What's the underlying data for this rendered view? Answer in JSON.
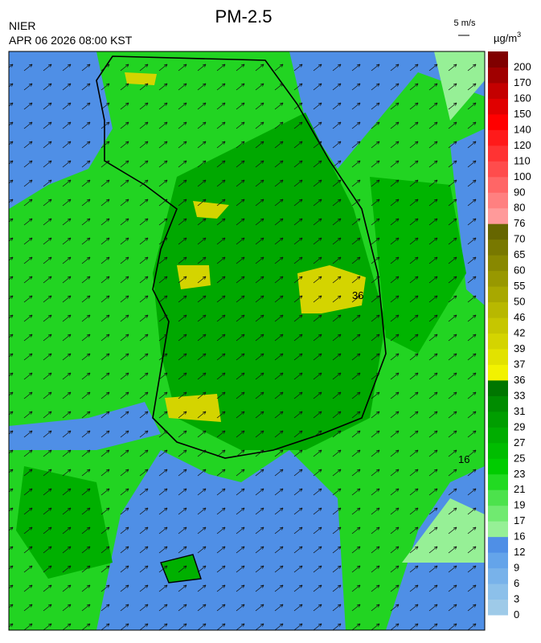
{
  "header": {
    "title": "PM-2.5",
    "agency": "NIER",
    "datetime": "APR 06 2026 08:00 KST",
    "wind_scale": "5 m/s",
    "unit": {
      "base": "µg/m",
      "superscript": "3"
    }
  },
  "map": {
    "contour_labels": [
      "36",
      "16"
    ]
  },
  "legend": [
    {
      "label": "0",
      "color": "#9ecae8"
    },
    {
      "label": "3",
      "color": "#8cc0ea"
    },
    {
      "label": "6",
      "color": "#78b2ea"
    },
    {
      "label": "9",
      "color": "#64a4ea"
    },
    {
      "label": "12",
      "color": "#4f8fe6"
    },
    {
      "label": "16",
      "color": "#96f096"
    },
    {
      "label": "17",
      "color": "#70ea70"
    },
    {
      "label": "19",
      "color": "#4ce24c"
    },
    {
      "label": "21",
      "color": "#22da22"
    },
    {
      "label": "23",
      "color": "#00cc00"
    },
    {
      "label": "25",
      "color": "#00bd00"
    },
    {
      "label": "27",
      "color": "#00ad00"
    },
    {
      "label": "29",
      "color": "#009e00"
    },
    {
      "label": "31",
      "color": "#008c00"
    },
    {
      "label": "33",
      "color": "#007600"
    },
    {
      "label": "36",
      "color": "#f2f200"
    },
    {
      "label": "37",
      "color": "#e2e200"
    },
    {
      "label": "39",
      "color": "#d4d400"
    },
    {
      "label": "42",
      "color": "#c6c600"
    },
    {
      "label": "46",
      "color": "#b8b800"
    },
    {
      "label": "50",
      "color": "#a8a800"
    },
    {
      "label": "55",
      "color": "#989800"
    },
    {
      "label": "60",
      "color": "#888800"
    },
    {
      "label": "65",
      "color": "#787800"
    },
    {
      "label": "70",
      "color": "#666600"
    },
    {
      "label": "76",
      "color": "#ff9a9a"
    },
    {
      "label": "80",
      "color": "#ff8080"
    },
    {
      "label": "90",
      "color": "#ff6666"
    },
    {
      "label": "100",
      "color": "#ff4c4c"
    },
    {
      "label": "110",
      "color": "#ff3333"
    },
    {
      "label": "120",
      "color": "#ff1a1a"
    },
    {
      "label": "140",
      "color": "#ff0000"
    },
    {
      "label": "150",
      "color": "#e00000"
    },
    {
      "label": "160",
      "color": "#c40000"
    },
    {
      "label": "170",
      "color": "#a00000"
    },
    {
      "label": "200",
      "color": "#800000"
    }
  ]
}
